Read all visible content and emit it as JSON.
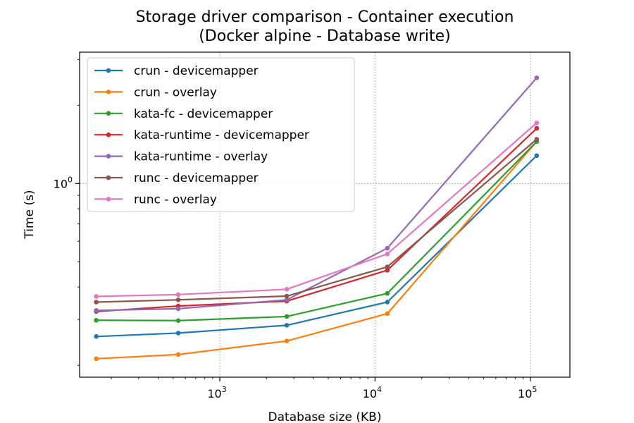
{
  "chart_data": {
    "type": "line",
    "title": [
      "Storage driver comparison - Container execution",
      "(Docker alpine - Database write)"
    ],
    "xlabel": "Database size (KB)",
    "ylabel": "Time (s)",
    "xscale": "log",
    "yscale": "log",
    "xlim": [
      125,
      180000
    ],
    "ylim": [
      0.18,
      3.2
    ],
    "x": [
      160,
      540,
      2700,
      12000,
      110000
    ],
    "xticks": [
      {
        "base": "10",
        "exp": "3",
        "value": 1000
      },
      {
        "base": "10",
        "exp": "4",
        "value": 10000
      },
      {
        "base": "10",
        "exp": "5",
        "value": 100000
      }
    ],
    "yticks": [
      {
        "base": "10",
        "exp": "0",
        "value": 1
      }
    ],
    "grid": true,
    "legend_position": "upper-left",
    "series": [
      {
        "name": "crun - devicemapper",
        "color": "#1f77b4",
        "values": [
          0.258,
          0.266,
          0.285,
          0.35,
          1.28
        ]
      },
      {
        "name": "crun - overlay",
        "color": "#ff7f0e",
        "values": [
          0.212,
          0.22,
          0.248,
          0.316,
          1.45
        ]
      },
      {
        "name": "kata-fc - devicemapper",
        "color": "#2ca02c",
        "values": [
          0.298,
          0.297,
          0.308,
          0.378,
          1.45
        ]
      },
      {
        "name": "kata-runtime - devicemapper",
        "color": "#d62728",
        "values": [
          0.322,
          0.338,
          0.353,
          0.464,
          1.63
        ]
      },
      {
        "name": "kata-runtime - overlay",
        "color": "#9467bd",
        "values": [
          0.325,
          0.33,
          0.357,
          0.564,
          2.55
        ]
      },
      {
        "name": "runc - devicemapper",
        "color": "#8c564b",
        "values": [
          0.35,
          0.357,
          0.369,
          0.478,
          1.48
        ]
      },
      {
        "name": "runc - overlay",
        "color": "#e377c2",
        "values": [
          0.368,
          0.374,
          0.392,
          0.536,
          1.71
        ]
      }
    ]
  }
}
